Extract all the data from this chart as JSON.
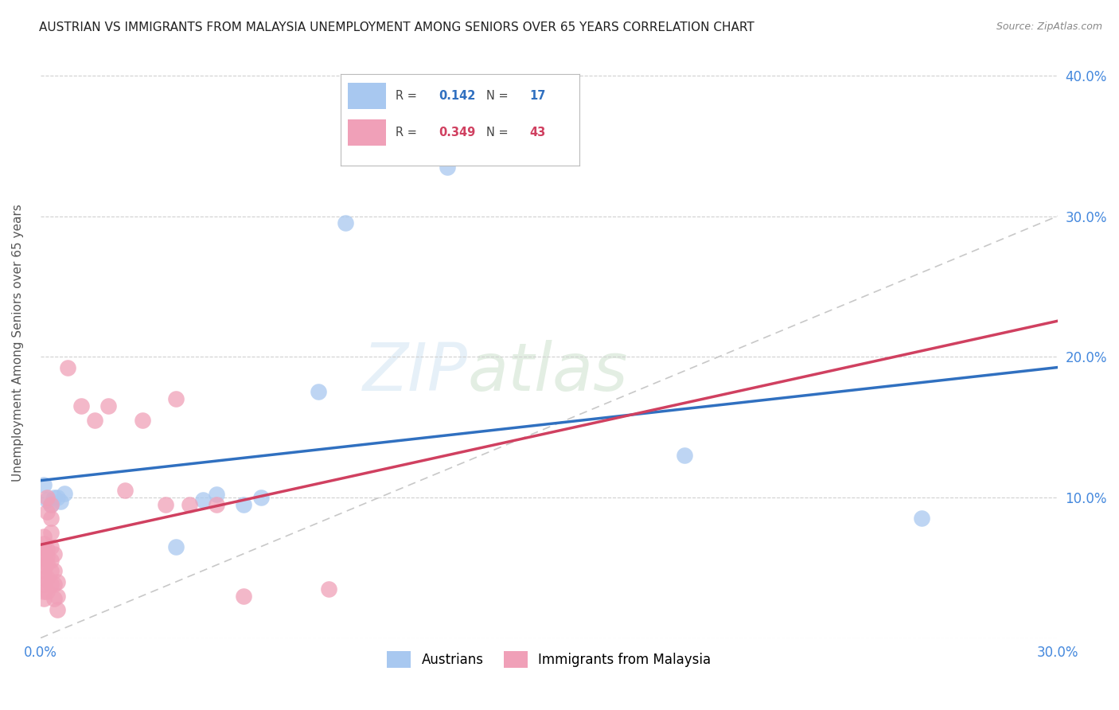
{
  "title": "AUSTRIAN VS IMMIGRANTS FROM MALAYSIA UNEMPLOYMENT AMONG SENIORS OVER 65 YEARS CORRELATION CHART",
  "source": "Source: ZipAtlas.com",
  "ylabel": "Unemployment Among Seniors over 65 years",
  "xlim": [
    0.0,
    0.3
  ],
  "ylim": [
    0.0,
    0.42
  ],
  "xticks": [
    0.0,
    0.05,
    0.1,
    0.15,
    0.2,
    0.25,
    0.3
  ],
  "yticks": [
    0.0,
    0.1,
    0.2,
    0.3,
    0.4
  ],
  "grid_color": "#d0d0d0",
  "background_color": "#ffffff",
  "blue_scatter_color": "#a8c8f0",
  "pink_scatter_color": "#f0a0b8",
  "blue_line_color": "#3070c0",
  "pink_line_color": "#d04060",
  "diagonal_color": "#c8c8c8",
  "blue_R": "0.142",
  "blue_N": "17",
  "pink_R": "0.349",
  "pink_N": "43",
  "blue_points": [
    [
      0.001,
      0.109
    ],
    [
      0.002,
      0.098
    ],
    [
      0.003,
      0.095
    ],
    [
      0.004,
      0.1
    ],
    [
      0.005,
      0.1
    ],
    [
      0.006,
      0.097
    ],
    [
      0.007,
      0.103
    ],
    [
      0.04,
      0.065
    ],
    [
      0.048,
      0.098
    ],
    [
      0.052,
      0.102
    ],
    [
      0.06,
      0.095
    ],
    [
      0.065,
      0.1
    ],
    [
      0.082,
      0.175
    ],
    [
      0.09,
      0.295
    ],
    [
      0.12,
      0.335
    ],
    [
      0.19,
      0.13
    ],
    [
      0.26,
      0.085
    ]
  ],
  "pink_points": [
    [
      0.001,
      0.028
    ],
    [
      0.001,
      0.033
    ],
    [
      0.001,
      0.038
    ],
    [
      0.001,
      0.043
    ],
    [
      0.001,
      0.048
    ],
    [
      0.001,
      0.052
    ],
    [
      0.001,
      0.057
    ],
    [
      0.001,
      0.062
    ],
    [
      0.001,
      0.067
    ],
    [
      0.001,
      0.072
    ],
    [
      0.002,
      0.033
    ],
    [
      0.002,
      0.043
    ],
    [
      0.002,
      0.053
    ],
    [
      0.002,
      0.058
    ],
    [
      0.002,
      0.063
    ],
    [
      0.002,
      0.09
    ],
    [
      0.002,
      0.1
    ],
    [
      0.003,
      0.038
    ],
    [
      0.003,
      0.048
    ],
    [
      0.003,
      0.055
    ],
    [
      0.003,
      0.065
    ],
    [
      0.003,
      0.075
    ],
    [
      0.003,
      0.085
    ],
    [
      0.003,
      0.095
    ],
    [
      0.004,
      0.028
    ],
    [
      0.004,
      0.038
    ],
    [
      0.004,
      0.048
    ],
    [
      0.004,
      0.06
    ],
    [
      0.005,
      0.02
    ],
    [
      0.005,
      0.03
    ],
    [
      0.005,
      0.04
    ],
    [
      0.008,
      0.192
    ],
    [
      0.012,
      0.165
    ],
    [
      0.016,
      0.155
    ],
    [
      0.02,
      0.165
    ],
    [
      0.025,
      0.105
    ],
    [
      0.03,
      0.155
    ],
    [
      0.037,
      0.095
    ],
    [
      0.04,
      0.17
    ],
    [
      0.044,
      0.095
    ],
    [
      0.052,
      0.095
    ],
    [
      0.06,
      0.03
    ],
    [
      0.085,
      0.035
    ]
  ]
}
